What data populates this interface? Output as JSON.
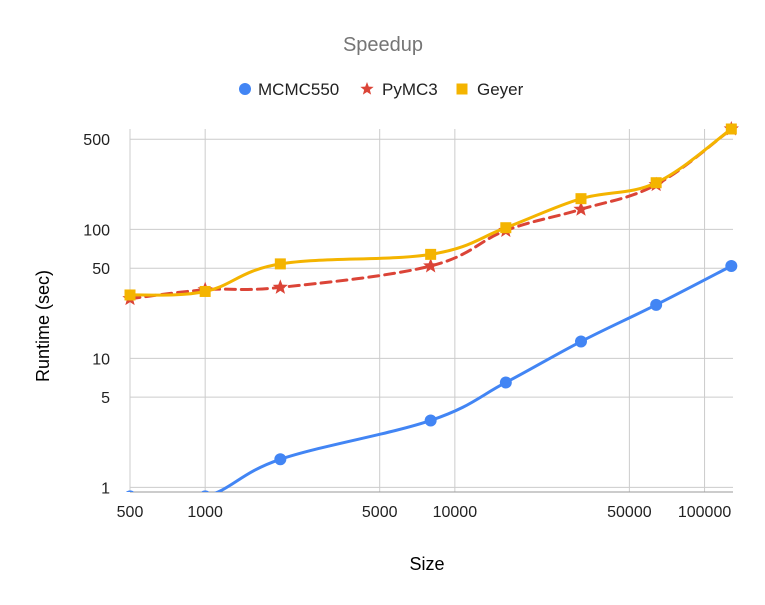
{
  "chart_data": {
    "type": "line",
    "title": "Speedup",
    "xlabel": "Size",
    "ylabel": "Runtime (sec)",
    "x_scale": "log",
    "y_scale": "log",
    "xlim": [
      500,
      130000
    ],
    "ylim": [
      0.92,
      600
    ],
    "x_ticks": [
      500,
      1000,
      5000,
      10000,
      50000,
      100000
    ],
    "x_tick_labels": [
      "500",
      "1000",
      "5000",
      "10000",
      "50000",
      "100000"
    ],
    "y_ticks": [
      1,
      5,
      10,
      50,
      100,
      500
    ],
    "y_tick_labels": [
      "1",
      "5",
      "10",
      "50",
      "100",
      "500"
    ],
    "grid": true,
    "legend_position": "top",
    "series": [
      {
        "name": "MCMC550",
        "color": "#4285F4",
        "marker": "circle",
        "line_style": "solid",
        "x": [
          500,
          1000,
          2000,
          8000,
          16000,
          32000,
          64000,
          128000
        ],
        "y": [
          0.85,
          0.85,
          1.65,
          3.3,
          6.5,
          13.5,
          26,
          52
        ]
      },
      {
        "name": "PyMC3",
        "color": "#DB4437",
        "marker": "star",
        "line_style": "dashed",
        "x": [
          500,
          1000,
          2000,
          8000,
          16000,
          32000,
          64000,
          128000
        ],
        "y": [
          29,
          34,
          35.5,
          52,
          98,
          143,
          222,
          600
        ]
      },
      {
        "name": "Geyer",
        "color": "#F4B400",
        "marker": "square",
        "line_style": "solid",
        "x": [
          500,
          1000,
          2000,
          8000,
          16000,
          32000,
          64000,
          128000
        ],
        "y": [
          31,
          33,
          54,
          64,
          103,
          173,
          230,
          600
        ]
      }
    ]
  }
}
